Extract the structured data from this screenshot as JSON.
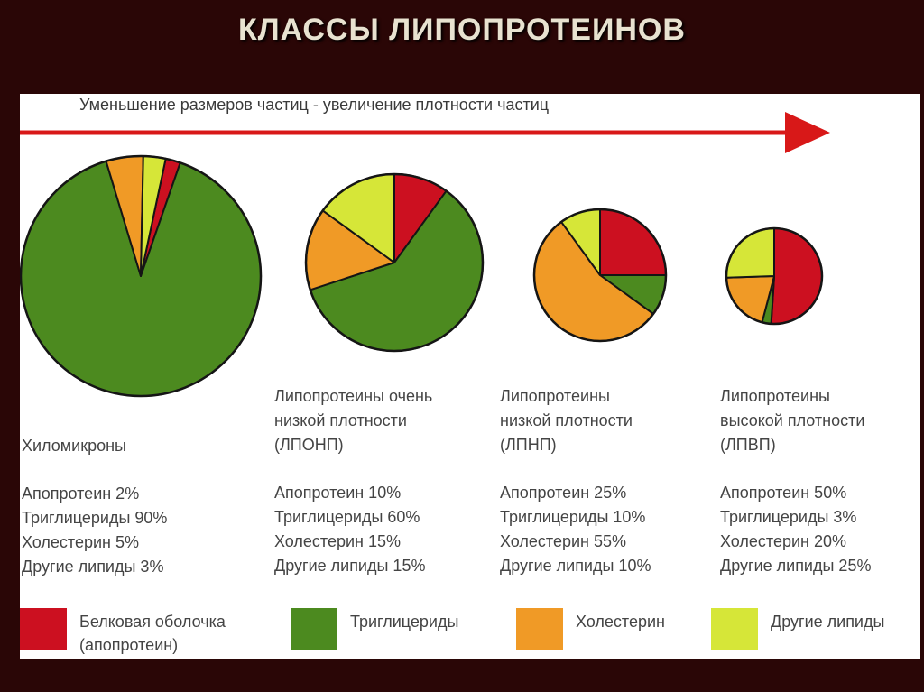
{
  "title": "КЛАССЫ ЛИПОПРОТЕИНОВ",
  "arrow_caption": "Уменьшение размеров частиц - увеличение плотности частиц",
  "colors": {
    "apoprotein": "#cc1020",
    "triglycerides": "#4c8a1f",
    "cholesterol": "#f09a26",
    "other_lipids": "#d6e638",
    "arrow": "#d81818",
    "outline": "#151515"
  },
  "legend": [
    {
      "label": "Белковая оболочка\n(апопротеин)",
      "color_key": "apoprotein"
    },
    {
      "label": "Триглицериды",
      "color_key": "triglycerides"
    },
    {
      "label": "Холестерин",
      "color_key": "cholesterol"
    },
    {
      "label": "Другие липиды",
      "color_key": "other_lipids"
    }
  ],
  "classes": [
    {
      "name": "Хиломикроны",
      "lines": [
        "Апопротеин 2%",
        "Триглицериды 90%",
        "Холестерин 5%",
        "Другие липиды 3%"
      ]
    },
    {
      "name": "Липопротеины очень\nнизкой плотности\n(ЛПОНП)",
      "lines": [
        "Апопротеин 10%",
        "Триглицериды 60%",
        "Холестерин 15%",
        "Другие липиды 15%"
      ]
    },
    {
      "name": "Липопротеины\nнизкой плотности\n(ЛПНП)",
      "lines": [
        "Апопротеин 25%",
        "Триглицериды 10%",
        "Холестерин 55%",
        "Другие липиды 10%"
      ]
    },
    {
      "name": "Липопротеины\nвысокой плотности\n(ЛПВП)",
      "lines": [
        "Апопротеин 50%",
        "Триглицериды 3%",
        "Холестерин 20%",
        "Другие липиды 25%"
      ]
    }
  ],
  "chart_data": {
    "type": "pie",
    "categories": [
      "Апопротеин",
      "Триглицериды",
      "Холестерин",
      "Другие липиды"
    ],
    "series": [
      {
        "name": "Хиломикроны",
        "values": [
          2,
          90,
          5,
          3
        ]
      },
      {
        "name": "ЛПОНП",
        "values": [
          10,
          60,
          15,
          15
        ]
      },
      {
        "name": "ЛПНП",
        "values": [
          25,
          10,
          55,
          10
        ]
      },
      {
        "name": "ЛПВП",
        "values": [
          50,
          3,
          20,
          25
        ]
      }
    ]
  }
}
